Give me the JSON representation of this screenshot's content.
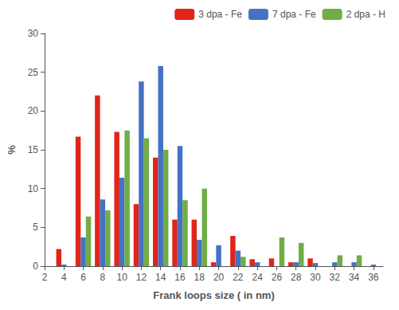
{
  "chart_data": {
    "type": "bar",
    "x": [
      4,
      6,
      8,
      10,
      12,
      14,
      16,
      18,
      20,
      22,
      24,
      26,
      28,
      30,
      32,
      34,
      36
    ],
    "series": [
      {
        "name": "3 dpa - Fe",
        "color": "#e0251a",
        "values": [
          2.2,
          16.7,
          22.0,
          17.3,
          8.0,
          14.0,
          6.0,
          6.0,
          0.5,
          3.9,
          0.9,
          1.0,
          0.5,
          1.0,
          0,
          0,
          0
        ]
      },
      {
        "name": "7 dpa - Fe",
        "color": "#4472c4",
        "values": [
          0.2,
          3.7,
          8.6,
          11.4,
          23.8,
          25.8,
          15.5,
          3.4,
          2.7,
          2.0,
          0.5,
          0,
          0.5,
          0.4,
          0.5,
          0.5,
          0.2
        ]
      },
      {
        "name": "2 dpa - H",
        "color": "#70ad47",
        "values": [
          0,
          6.4,
          7.2,
          17.5,
          16.5,
          15.0,
          8.5,
          10.0,
          0,
          1.2,
          0,
          3.7,
          3.0,
          0,
          1.4,
          1.4,
          0
        ]
      }
    ],
    "xlabel": "Frank loops size ( in nm)",
    "ylabel": "%",
    "xlim": [
      2,
      37
    ],
    "ylim": [
      0,
      30
    ],
    "xticks": [
      2,
      4,
      6,
      8,
      10,
      12,
      14,
      16,
      18,
      20,
      22,
      24,
      26,
      28,
      30,
      32,
      34,
      36
    ],
    "yticks": [
      0,
      5,
      10,
      15,
      20,
      25,
      30
    ],
    "legend": "upper right",
    "grid": false
  }
}
